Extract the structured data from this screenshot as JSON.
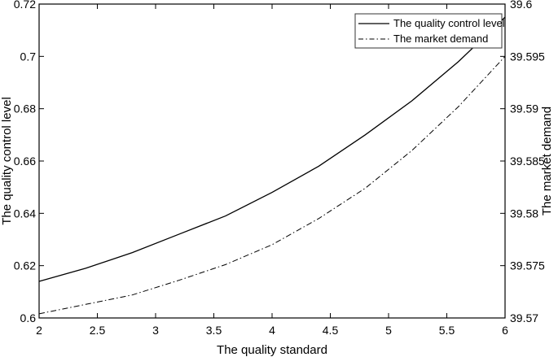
{
  "chart_data": {
    "type": "line",
    "title": "",
    "xlabel": "The quality standard",
    "ylabel": "The quality control level",
    "y2label": "The market demand",
    "xlim": [
      2,
      6
    ],
    "ylim": [
      0.6,
      0.72
    ],
    "y2lim": [
      39.57,
      39.6
    ],
    "grid": false,
    "legend_position": "upper right",
    "x_ticks": [
      "2",
      "2.5",
      "3",
      "3.5",
      "4",
      "4.5",
      "5",
      "5.5",
      "6"
    ],
    "y_ticks": [
      "0.6",
      "0.62",
      "0.64",
      "0.66",
      "0.68",
      "0.7",
      "0.72"
    ],
    "y2_ticks": [
      "39.57",
      "39.575",
      "39.58",
      "39.585",
      "39.59",
      "39.595",
      "39.6"
    ],
    "x": [
      2,
      2.4,
      2.8,
      3.2,
      3.6,
      4.0,
      4.4,
      4.8,
      5.2,
      5.6,
      6.0
    ],
    "series": [
      {
        "name": "The quality control level",
        "axis": "left",
        "style": "solid",
        "values": [
          0.614,
          0.619,
          0.625,
          0.632,
          0.639,
          0.648,
          0.658,
          0.67,
          0.683,
          0.698,
          0.715
        ]
      },
      {
        "name": "The market demand",
        "axis": "right",
        "style": "dash-dot",
        "values": [
          39.5704,
          39.5713,
          39.5722,
          39.5736,
          39.5751,
          39.577,
          39.5795,
          39.5824,
          39.586,
          39.5902,
          39.595
        ]
      }
    ]
  }
}
